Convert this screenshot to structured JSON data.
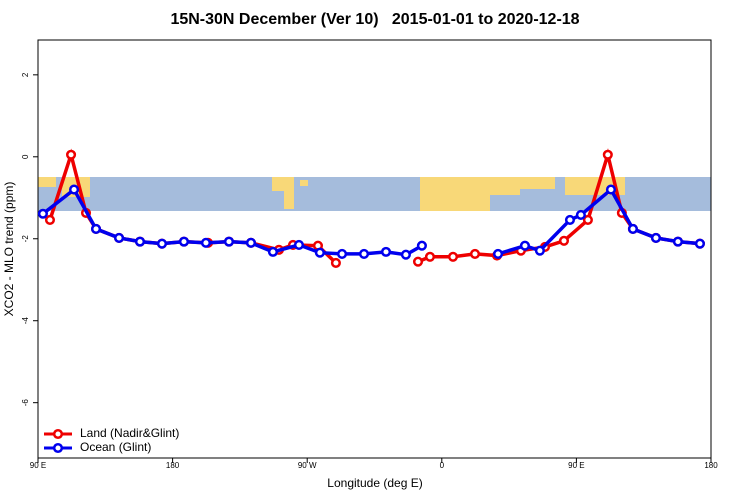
{
  "chart_data": {
    "type": "line",
    "title": "15N-30N December (Ver 10)   2015-01-01 to 2020-12-18",
    "xlabel": "Longitude (deg E)",
    "ylabel": "XCO2 - MLO trend (ppm)",
    "xlim": [
      90,
      540
    ],
    "ylim": [
      -7.35,
      2.85
    ],
    "xticks": [
      {
        "value": 90,
        "label": "90 E"
      },
      180,
      {
        "value": 270,
        "label": "90 W"
      },
      {
        "value": 360,
        "label": "0"
      },
      {
        "value": 450,
        "label": "90 E"
      },
      {
        "value": 540,
        "label": "180"
      }
    ],
    "yticks": [
      2,
      0,
      -2,
      -4,
      -6
    ],
    "legend": "bottomleft",
    "series": [
      {
        "name": "Land (Nadir&Glint)",
        "color": "#ee0000",
        "x": [
          98.0,
          112.1,
          122.1,
          128.8,
          144.2,
          158.2,
          172.9,
          187.6,
          203.7,
          217.7,
          232.4,
          251.1,
          260.5,
          277.2,
          289.2,
          320,
          344.1,
          352.1,
          367.5,
          382.2,
          396.9,
          412.9,
          429.0,
          441.7,
          457.7,
          471.0,
          480.4,
          487.8,
          503.2,
          517.9,
          532.6
        ],
        "values": [
          -1.54,
          0.05,
          -1.37,
          -1.76,
          -1.98,
          -2.07,
          -2.12,
          -2.07,
          -2.1,
          -2.07,
          -2.1,
          -2.27,
          -2.15,
          -2.17,
          -2.59,
          null,
          -2.56,
          -2.44,
          -2.44,
          -2.37,
          -2.41,
          -2.29,
          -2.2,
          -2.05,
          -1.54,
          0.05,
          -1.37,
          -1.76,
          -1.98,
          -2.07,
          -2.12
        ]
      },
      {
        "name": "Ocean (Glint)",
        "color": "#0000ee",
        "x": [
          93.3,
          114.1,
          128.8,
          144.2,
          158.2,
          172.9,
          187.6,
          202.3,
          217.7,
          232.4,
          247.1,
          264.5,
          278.5,
          293.3,
          308.0,
          322.7,
          336.0,
          346.7,
          370,
          397.6,
          415.6,
          425.6,
          445.7,
          453.0,
          473.1,
          487.8,
          503.2,
          517.9,
          532.6
        ],
        "values": [
          -1.39,
          -0.8,
          -1.76,
          -1.98,
          -2.07,
          -2.12,
          -2.07,
          -2.1,
          -2.07,
          -2.1,
          -2.32,
          -2.15,
          -2.34,
          -2.37,
          -2.37,
          -2.32,
          -2.39,
          -2.17,
          null,
          -2.37,
          -2.17,
          -2.29,
          -1.54,
          -1.42,
          -0.8,
          -1.76,
          -1.98,
          -2.07,
          -2.12
        ]
      }
    ]
  }
}
